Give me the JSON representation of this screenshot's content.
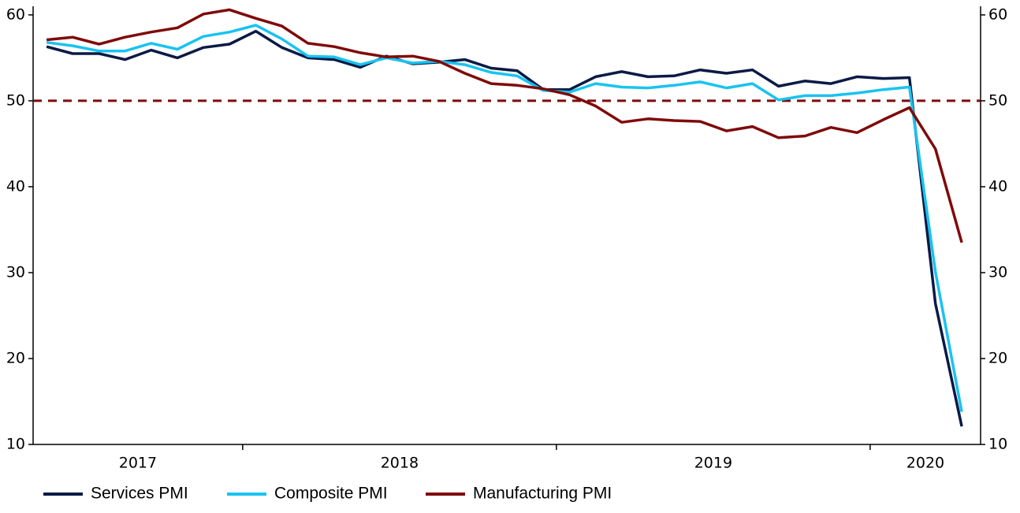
{
  "chart_data": {
    "type": "line",
    "x": [
      2017.375,
      2017.458,
      2017.542,
      2017.625,
      2017.708,
      2017.792,
      2017.875,
      2017.958,
      2018.042,
      2018.125,
      2018.208,
      2018.292,
      2018.375,
      2018.458,
      2018.542,
      2018.625,
      2018.708,
      2018.792,
      2018.875,
      2018.958,
      2019.042,
      2019.125,
      2019.208,
      2019.292,
      2019.375,
      2019.458,
      2019.542,
      2019.625,
      2019.708,
      2019.792,
      2019.875,
      2019.958,
      2020.042,
      2020.125,
      2020.208,
      2020.292
    ],
    "series": [
      {
        "name": "Services PMI",
        "color": "#0b1a45",
        "values": [
          56.3,
          55.5,
          55.5,
          54.8,
          55.9,
          55.0,
          56.2,
          56.6,
          58.1,
          56.2,
          55.0,
          54.8,
          53.9,
          55.2,
          54.3,
          54.5,
          54.8,
          53.8,
          53.5,
          51.3,
          51.3,
          52.8,
          53.4,
          52.8,
          52.9,
          53.6,
          53.2,
          53.6,
          51.7,
          52.3,
          52.0,
          52.8,
          52.6,
          52.7,
          26.4,
          12.1
        ]
      },
      {
        "name": "Composite PMI",
        "color": "#19c3f0",
        "values": [
          56.8,
          56.4,
          55.8,
          55.8,
          56.7,
          56.0,
          57.5,
          58.0,
          58.8,
          57.2,
          55.2,
          55.1,
          54.2,
          55.0,
          54.4,
          54.6,
          54.2,
          53.3,
          52.9,
          51.2,
          51.0,
          52.0,
          51.6,
          51.5,
          51.8,
          52.2,
          51.5,
          52.0,
          50.1,
          50.6,
          50.6,
          50.9,
          51.3,
          51.6,
          30.1,
          13.8
        ]
      },
      {
        "name": "Manufacturing PMI",
        "color": "#7f0a0a",
        "values": [
          57.1,
          57.4,
          56.6,
          57.4,
          58.0,
          58.5,
          60.1,
          60.6,
          59.6,
          58.7,
          56.7,
          56.3,
          55.6,
          55.1,
          55.2,
          54.6,
          53.2,
          52.0,
          51.8,
          51.4,
          50.7,
          49.4,
          47.5,
          47.9,
          47.7,
          47.6,
          46.5,
          47.0,
          45.7,
          45.9,
          46.9,
          46.3,
          47.8,
          49.2,
          44.4,
          33.5
        ]
      }
    ],
    "xlim": [
      2017.332,
      2020.352
    ],
    "xticks": [
      2018,
      2019,
      2020
    ],
    "xlabels": [
      "2017",
      "2018",
      "2019",
      "2020"
    ],
    "ylim": [
      10,
      61
    ],
    "yticks": [
      10,
      20,
      30,
      40,
      50,
      60
    ],
    "y2lim": [
      10,
      61
    ],
    "y2ticks": [
      10,
      20,
      30,
      40,
      50,
      60
    ],
    "reference_line": {
      "value": 50,
      "color": "#7f0a0a"
    },
    "legend": "bottom"
  }
}
